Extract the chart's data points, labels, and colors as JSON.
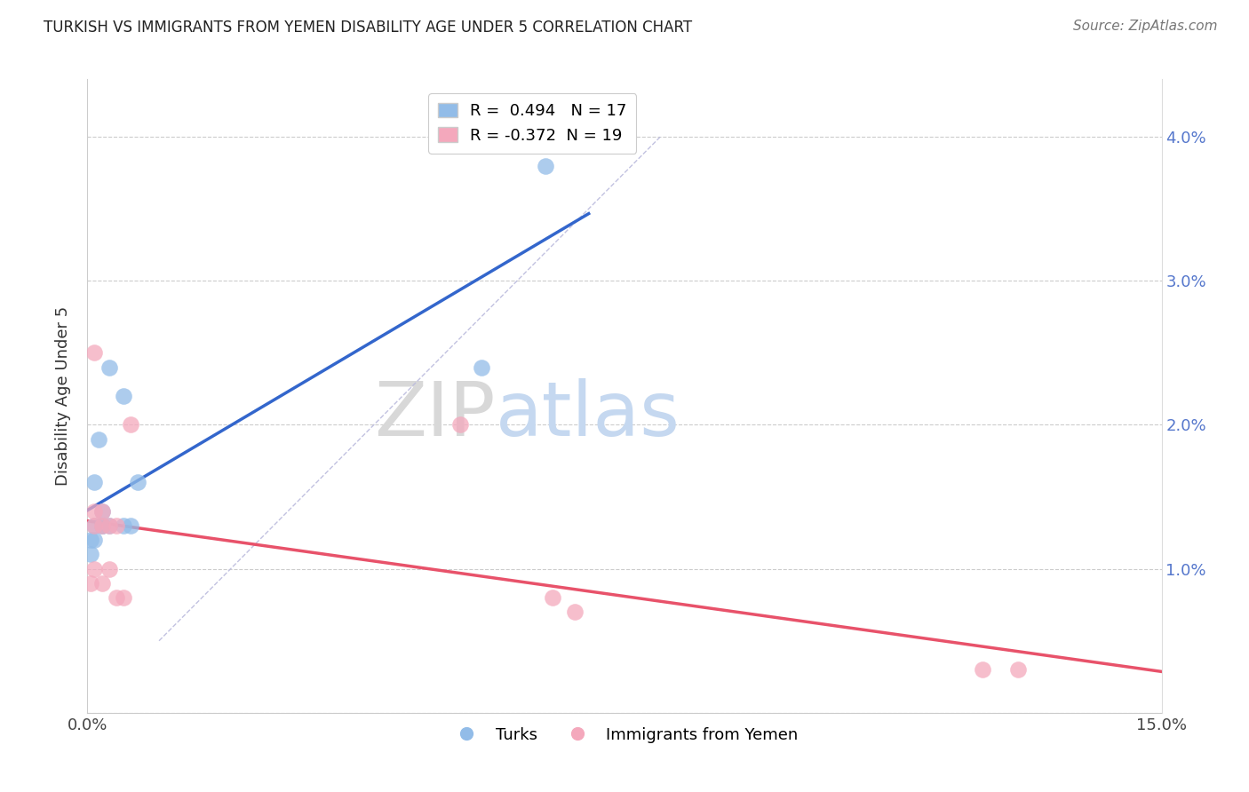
{
  "title": "TURKISH VS IMMIGRANTS FROM YEMEN DISABILITY AGE UNDER 5 CORRELATION CHART",
  "source_text": "Source: ZipAtlas.com",
  "ylabel": "Disability Age Under 5",
  "xlim": [
    0,
    0.15
  ],
  "ylim": [
    0,
    0.044
  ],
  "xticks": [
    0.0,
    0.025,
    0.05,
    0.075,
    0.1,
    0.125,
    0.15
  ],
  "xticklabels": [
    "0.0%",
    "",
    "",
    "",
    "",
    "",
    "15.0%"
  ],
  "yticks": [
    0.0,
    0.01,
    0.02,
    0.03,
    0.04
  ],
  "ylabels_left": [
    "",
    "",
    "",
    "",
    ""
  ],
  "ylabels_right": [
    "",
    "1.0%",
    "2.0%",
    "3.0%",
    "4.0%"
  ],
  "turks_x": [
    0.0005,
    0.0005,
    0.001,
    0.001,
    0.001,
    0.0015,
    0.002,
    0.002,
    0.002,
    0.003,
    0.003,
    0.005,
    0.005,
    0.006,
    0.007,
    0.055,
    0.064
  ],
  "turks_y": [
    0.011,
    0.012,
    0.012,
    0.013,
    0.016,
    0.019,
    0.013,
    0.013,
    0.014,
    0.013,
    0.024,
    0.013,
    0.022,
    0.013,
    0.016,
    0.024,
    0.038
  ],
  "yemen_x": [
    0.0005,
    0.001,
    0.001,
    0.001,
    0.001,
    0.002,
    0.002,
    0.002,
    0.003,
    0.003,
    0.004,
    0.004,
    0.005,
    0.006,
    0.052,
    0.065,
    0.068,
    0.125,
    0.13
  ],
  "yemen_y": [
    0.009,
    0.01,
    0.013,
    0.014,
    0.025,
    0.009,
    0.013,
    0.014,
    0.01,
    0.013,
    0.013,
    0.008,
    0.008,
    0.02,
    0.02,
    0.008,
    0.007,
    0.003,
    0.003
  ],
  "turks_color": "#92bce8",
  "yemen_color": "#f4a8bc",
  "turks_line_color": "#3366cc",
  "yemen_line_color": "#e8526a",
  "diagonal_color": "#bbbbdd",
  "R_turks": 0.494,
  "N_turks": 17,
  "R_yemen": -0.372,
  "N_yemen": 19,
  "legend_turks": "Turks",
  "legend_yemen": "Immigrants from Yemen",
  "watermark_left": "ZIP",
  "watermark_right": "atlas",
  "background_color": "#ffffff",
  "grid_color": "#cccccc"
}
